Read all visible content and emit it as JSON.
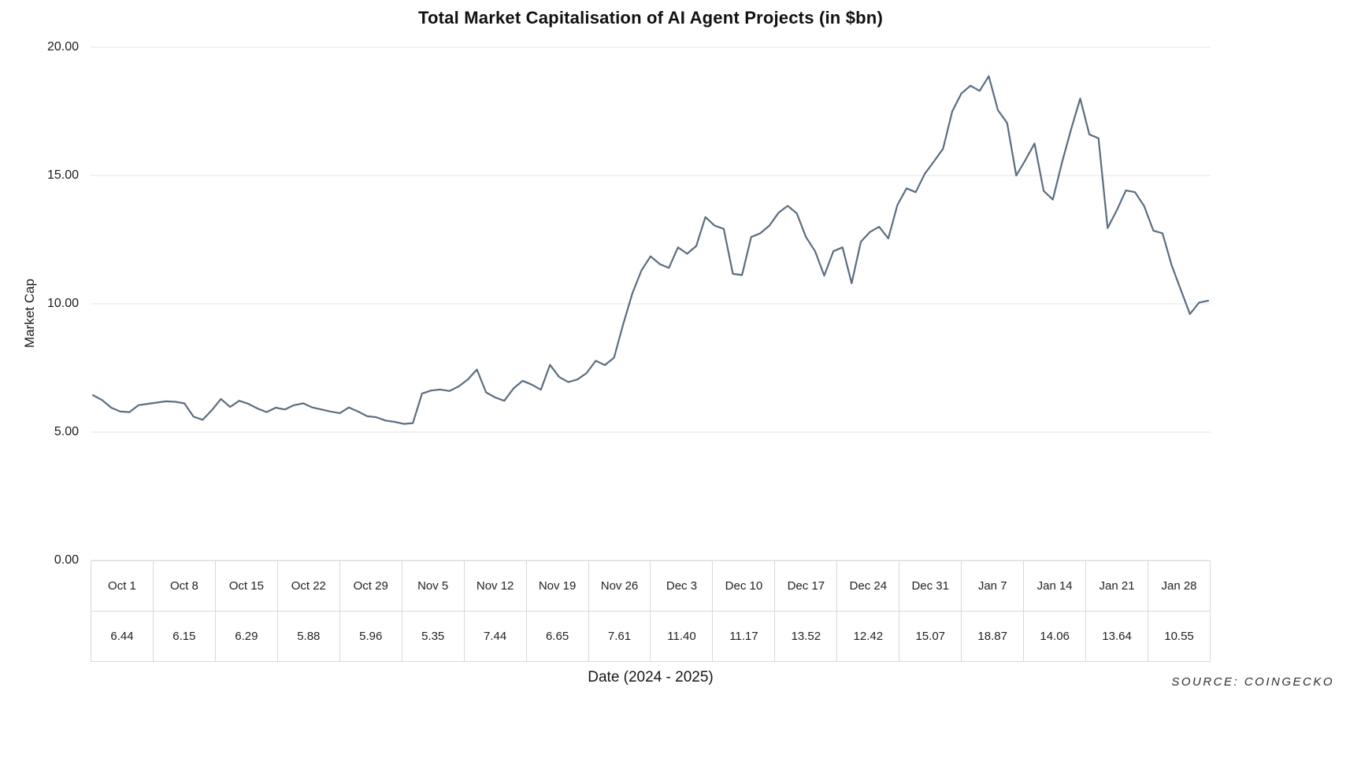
{
  "title": "Total Market Capitalisation of AI Agent Projects (in $bn)",
  "y_axis": {
    "label": "Market Cap",
    "ticks": [
      "20.00",
      "15.00",
      "10.00",
      "5.00",
      "0.00"
    ],
    "min": 0,
    "max": 20
  },
  "x_axis": {
    "label": "Date (2024 - 2025)"
  },
  "source": "SOURCE: COINGECKO",
  "colors": {
    "line": "#5b6d82",
    "grid": "#e6e6e6",
    "table_border": "#d9d9d9",
    "text": "#1b1b1b"
  },
  "table": {
    "columns": [
      {
        "date": "Oct 1",
        "value": "6.44"
      },
      {
        "date": "Oct 8",
        "value": "6.15"
      },
      {
        "date": "Oct 15",
        "value": "6.29"
      },
      {
        "date": "Oct 22",
        "value": "5.88"
      },
      {
        "date": "Oct 29",
        "value": "5.96"
      },
      {
        "date": "Nov 5",
        "value": "5.35"
      },
      {
        "date": "Nov 12",
        "value": "7.44"
      },
      {
        "date": "Nov 19",
        "value": "6.65"
      },
      {
        "date": "Nov 26",
        "value": "7.61"
      },
      {
        "date": "Dec 3",
        "value": "11.40"
      },
      {
        "date": "Dec 10",
        "value": "11.17"
      },
      {
        "date": "Dec 17",
        "value": "13.52"
      },
      {
        "date": "Dec 24",
        "value": "12.42"
      },
      {
        "date": "Dec 31",
        "value": "15.07"
      },
      {
        "date": "Jan 7",
        "value": "18.87"
      },
      {
        "date": "Jan 14",
        "value": "14.06"
      },
      {
        "date": "Jan 21",
        "value": "13.64"
      },
      {
        "date": "Jan 28",
        "value": "10.55"
      }
    ]
  },
  "chart_data": {
    "type": "line",
    "title": "Total Market Capitalisation of AI Agent Projects (in $bn)",
    "xlabel": "Date (2024 - 2025)",
    "ylabel": "Market Cap",
    "ylim": [
      0,
      20
    ],
    "grid": true,
    "x_start": "2024-10-01",
    "x_frequency": "daily",
    "weekly_anchor_dates": [
      "Oct 1",
      "Oct 8",
      "Oct 15",
      "Oct 22",
      "Oct 29",
      "Nov 5",
      "Nov 12",
      "Nov 19",
      "Nov 26",
      "Dec 3",
      "Dec 10",
      "Dec 17",
      "Dec 24",
      "Dec 31",
      "Jan 7",
      "Jan 14",
      "Jan 21",
      "Jan 28"
    ],
    "weekly_anchor_values": [
      6.44,
      6.15,
      6.29,
      5.88,
      5.96,
      5.35,
      7.44,
      6.65,
      7.61,
      11.4,
      11.17,
      13.52,
      12.42,
      15.07,
      18.87,
      14.06,
      13.64,
      10.55
    ],
    "daily_values": [
      6.44,
      6.25,
      5.95,
      5.8,
      5.78,
      6.05,
      6.1,
      6.15,
      6.2,
      6.18,
      6.12,
      5.6,
      5.48,
      5.85,
      6.29,
      5.98,
      6.22,
      6.1,
      5.92,
      5.78,
      5.95,
      5.88,
      6.05,
      6.12,
      5.96,
      5.88,
      5.8,
      5.74,
      5.96,
      5.8,
      5.62,
      5.58,
      5.45,
      5.4,
      5.32,
      5.35,
      6.5,
      6.62,
      6.66,
      6.6,
      6.78,
      7.05,
      7.44,
      6.55,
      6.35,
      6.22,
      6.7,
      7.0,
      6.85,
      6.65,
      7.62,
      7.15,
      6.95,
      7.05,
      7.3,
      7.78,
      7.61,
      7.9,
      9.2,
      10.4,
      11.3,
      11.85,
      11.55,
      11.4,
      12.2,
      11.95,
      12.25,
      13.38,
      13.05,
      12.92,
      11.17,
      11.12,
      12.6,
      12.75,
      13.05,
      13.55,
      13.82,
      13.52,
      12.6,
      12.05,
      11.1,
      12.05,
      12.2,
      10.8,
      12.42,
      12.8,
      13.0,
      12.55,
      13.85,
      14.5,
      14.35,
      15.07,
      15.55,
      16.05,
      17.5,
      18.2,
      18.5,
      18.3,
      18.87,
      17.55,
      17.05,
      15.0,
      15.6,
      16.25,
      14.4,
      14.06,
      15.5,
      16.8,
      18.0,
      16.6,
      16.45,
      12.95,
      13.64,
      14.42,
      14.35,
      13.8,
      12.85,
      12.75,
      11.5,
      10.55,
      9.6,
      10.05,
      10.12
    ]
  }
}
